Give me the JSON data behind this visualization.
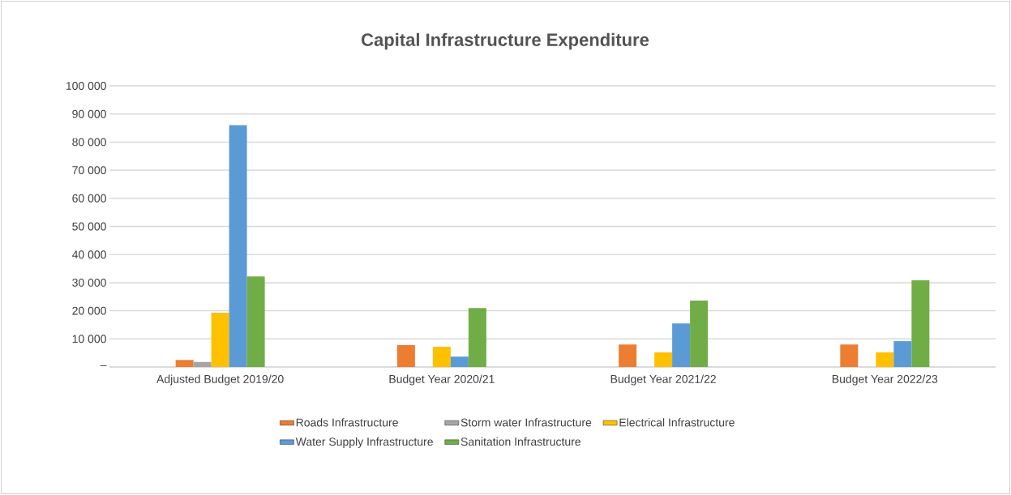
{
  "chart_data": {
    "type": "bar",
    "title": "Capital Infrastructure Expenditure",
    "categories": [
      "Adjusted Budget 2019/20",
      "Budget Year 2020/21",
      "Budget Year 2021/22",
      "Budget Year  2022/23"
    ],
    "series": [
      {
        "name": "Roads Infrastructure",
        "color": "#ed7d31",
        "values": [
          2500,
          7800,
          8000,
          8000
        ]
      },
      {
        "name": "Storm water Infrastructure",
        "color": "#a5a5a5",
        "values": [
          1800,
          0,
          0,
          0
        ]
      },
      {
        "name": "Electrical Infrastructure",
        "color": "#ffc000",
        "values": [
          19300,
          7200,
          5200,
          5200
        ]
      },
      {
        "name": "Water Supply Infrastructure",
        "color": "#5b9bd5",
        "values": [
          86000,
          3700,
          15500,
          9200
        ]
      },
      {
        "name": "Sanitation Infrastructure",
        "color": "#70ad47",
        "values": [
          32200,
          21000,
          23600,
          30800
        ]
      }
    ],
    "ylim": [
      0,
      100000
    ],
    "yticks": [
      {
        "value": 0,
        "label": "–"
      },
      {
        "value": 10000,
        "label": "10 000"
      },
      {
        "value": 20000,
        "label": "20 000"
      },
      {
        "value": 30000,
        "label": "30 000"
      },
      {
        "value": 40000,
        "label": "40 000"
      },
      {
        "value": 50000,
        "label": "50 000"
      },
      {
        "value": 60000,
        "label": "60 000"
      },
      {
        "value": 70000,
        "label": "70 000"
      },
      {
        "value": 80000,
        "label": "80 000"
      },
      {
        "value": 90000,
        "label": "90 000"
      },
      {
        "value": 100000,
        "label": "100 000"
      }
    ],
    "grid": "y",
    "legend": "bottom"
  }
}
